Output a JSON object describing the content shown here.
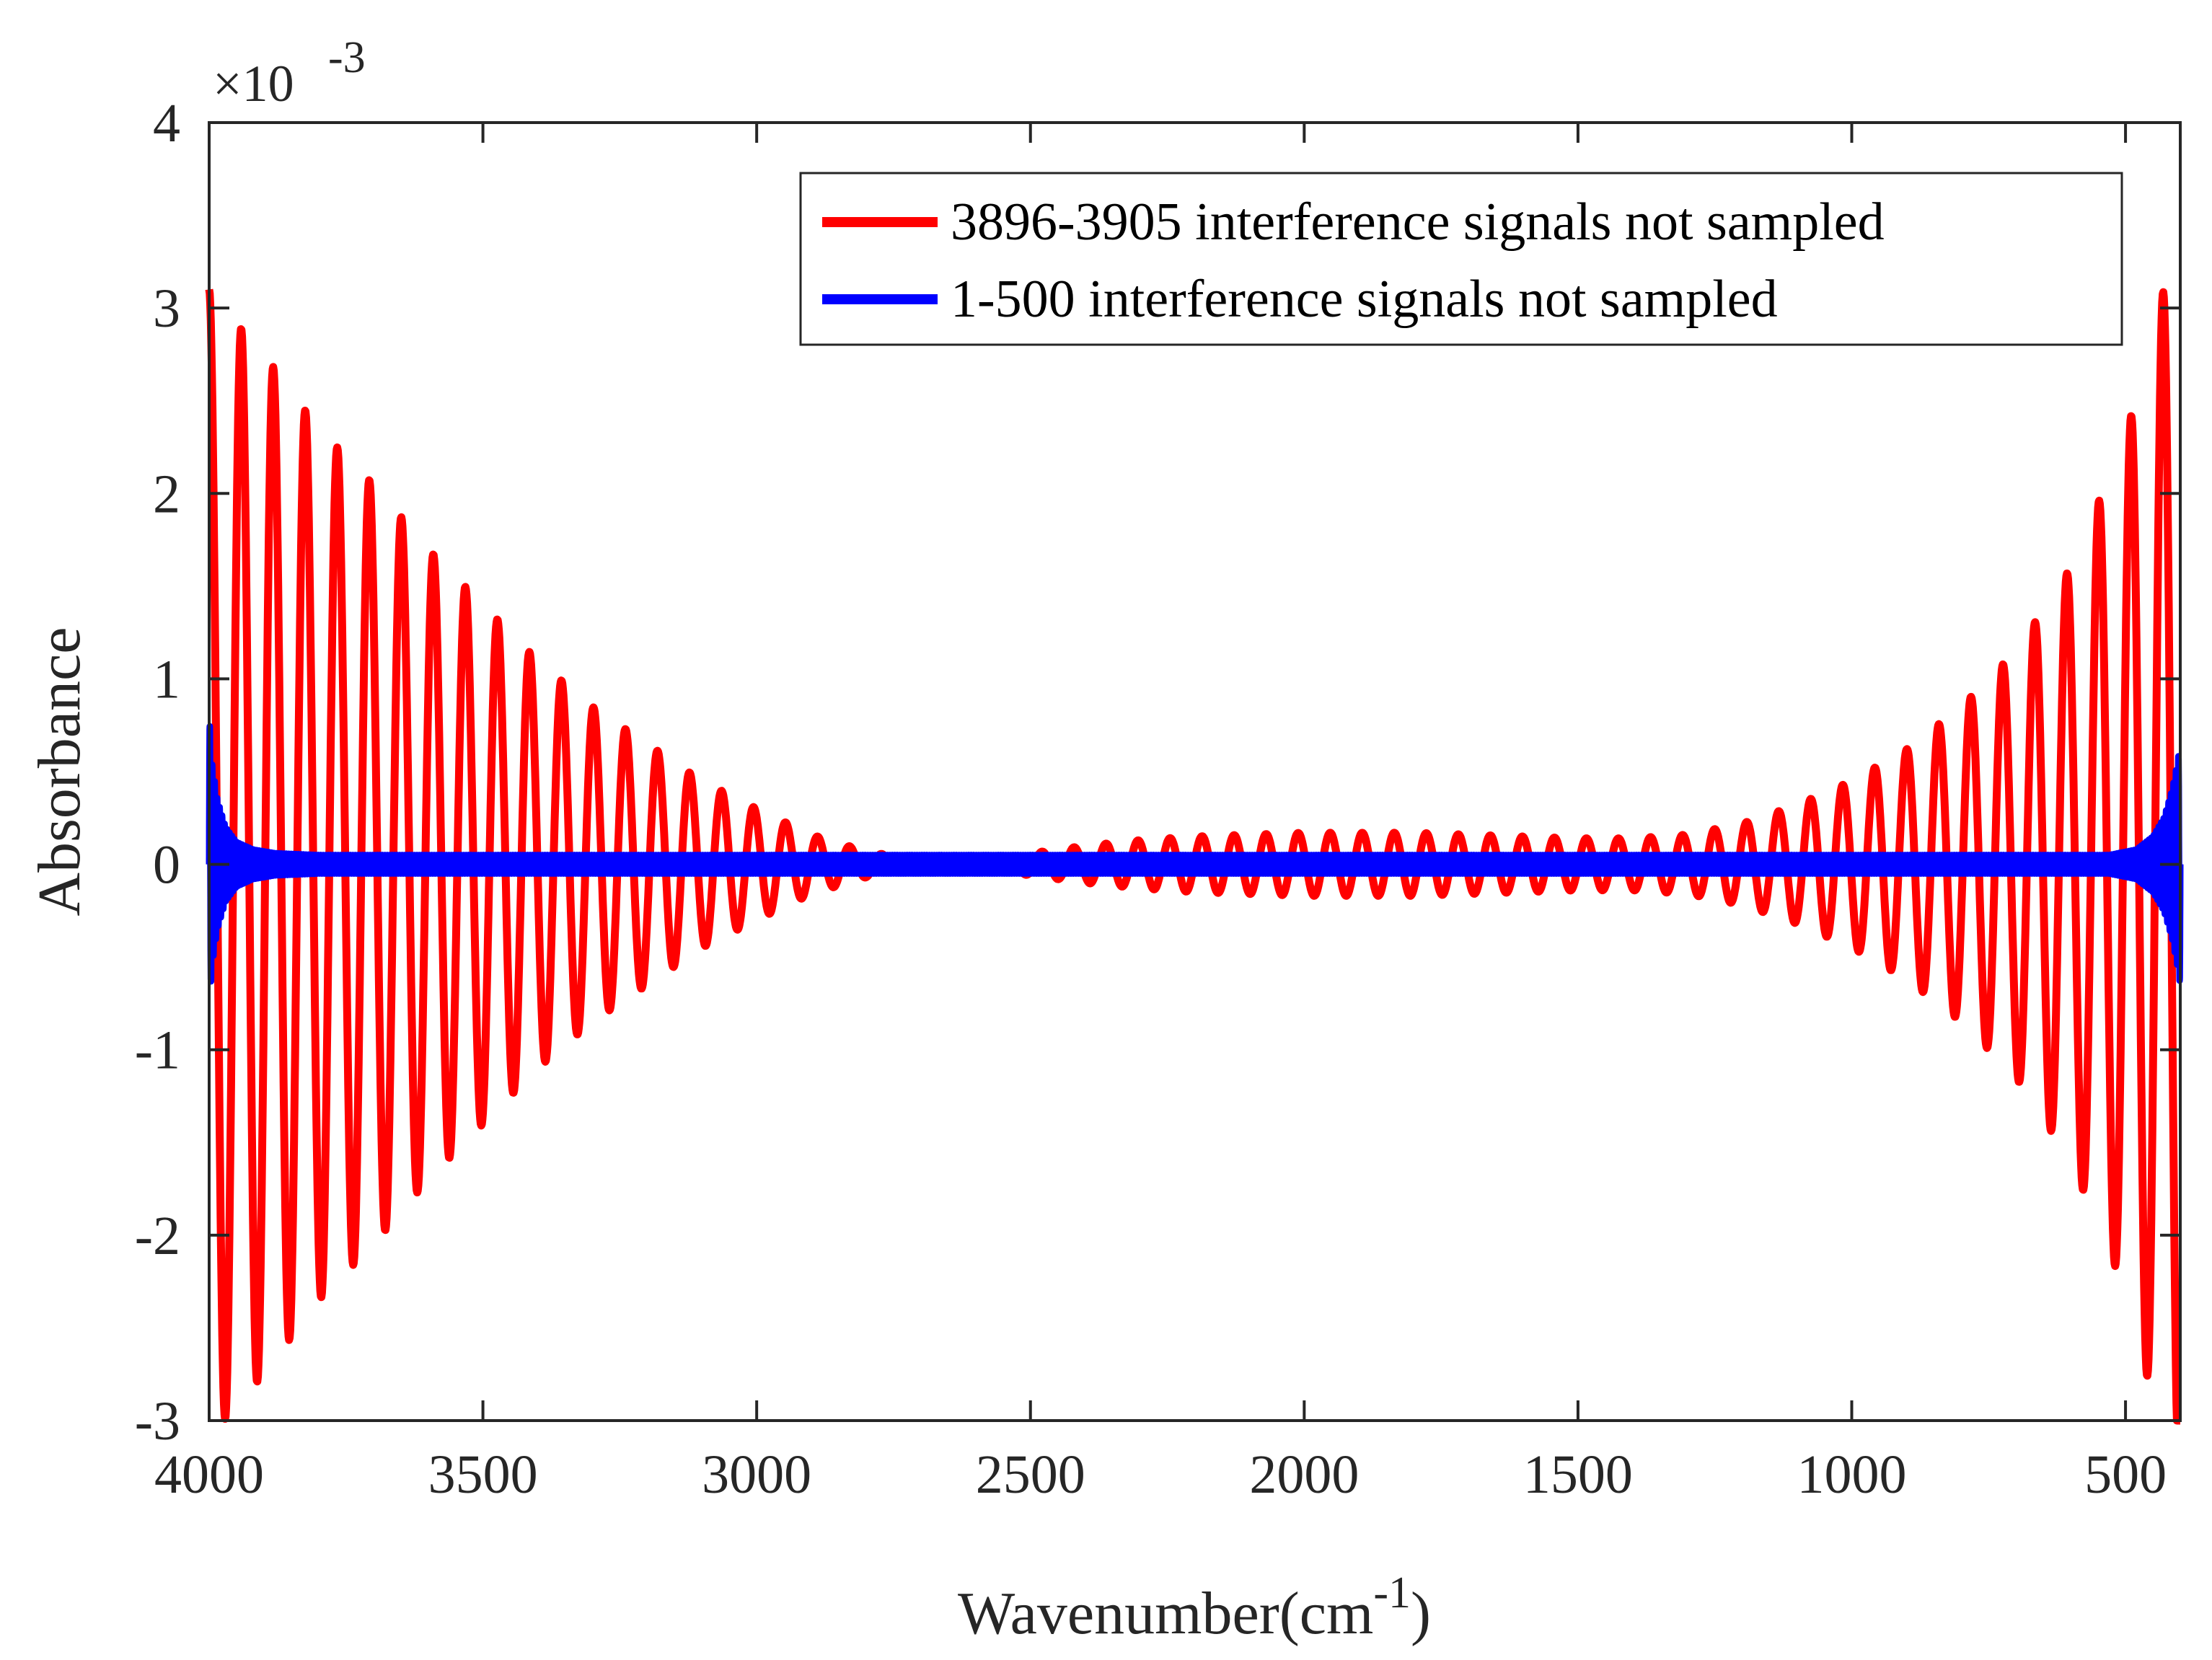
{
  "chart_data": {
    "type": "line",
    "title": "",
    "xlabel": "Wavenumber(cm",
    "xlabel_sup": "-1",
    "xlabel_close": ")",
    "ylabel": "Absorbance",
    "y_multiplier_base": "×10",
    "y_multiplier_exp": "-3",
    "xlim": [
      4000,
      400
    ],
    "x_reversed": true,
    "ylim": [
      -3,
      4
    ],
    "y_units_scale": 0.001,
    "xticks": [
      4000,
      3500,
      3000,
      2500,
      2000,
      1500,
      1000,
      500
    ],
    "xtick_labels": [
      "4000",
      "3500",
      "3000",
      "2500",
      "2000",
      "1500",
      "1000",
      "500"
    ],
    "yticks": [
      -3,
      -2,
      -1,
      0,
      1,
      2,
      3,
      4
    ],
    "ytick_labels": [
      "-3",
      "-2",
      "-1",
      "0",
      "1",
      "2",
      "3",
      "4"
    ],
    "grid": false,
    "legend_position": "top-right",
    "series": [
      {
        "name": "3896-3905 interference signals not sampled",
        "color": "#ff0000",
        "envelope_points_x": [
          4000,
          3960,
          3900,
          3800,
          3700,
          3600,
          3500,
          3400,
          3300,
          3200,
          3100,
          3000,
          2900,
          2800,
          2700,
          2640,
          2600,
          2500,
          2400,
          2300,
          2200,
          2100,
          2000,
          1900,
          1800,
          1700,
          1600,
          1500,
          1400,
          1300,
          1200,
          1100,
          1000,
          900,
          800,
          700,
          600,
          500,
          440,
          400
        ],
        "envelope_points_y": [
          3.1,
          2.95,
          2.75,
          2.35,
          2.05,
          1.7,
          1.4,
          1.1,
          0.85,
          0.65,
          0.45,
          0.3,
          0.16,
          0.07,
          0.02,
          0.0,
          0.02,
          0.06,
          0.1,
          0.13,
          0.15,
          0.16,
          0.17,
          0.17,
          0.17,
          0.16,
          0.15,
          0.14,
          0.14,
          0.16,
          0.22,
          0.32,
          0.45,
          0.62,
          0.85,
          1.15,
          1.6,
          2.3,
          3.0,
          3.4
        ],
        "oscillation_period_cm-1": 58.5
      },
      {
        "name": "1-500 interference signals not sampled",
        "color": "#0000ff",
        "envelope_points_x": [
          4000,
          3995,
          3985,
          3970,
          3950,
          3920,
          3880,
          3800,
          2000,
          530,
          480,
          450,
          430,
          415,
          405,
          400
        ],
        "envelope_points_y": [
          0.8,
          0.55,
          0.35,
          0.2,
          0.12,
          0.08,
          0.06,
          0.05,
          0.05,
          0.05,
          0.08,
          0.15,
          0.25,
          0.4,
          0.55,
          0.65
        ],
        "oscillation_period_cm-1": 4.5
      }
    ]
  },
  "legend": {
    "entries": [
      {
        "label": "3896-3905 interference signals not sampled",
        "color": "#ff0000"
      },
      {
        "label": "1-500 interference signals not sampled",
        "color": "#0000ff"
      }
    ]
  }
}
